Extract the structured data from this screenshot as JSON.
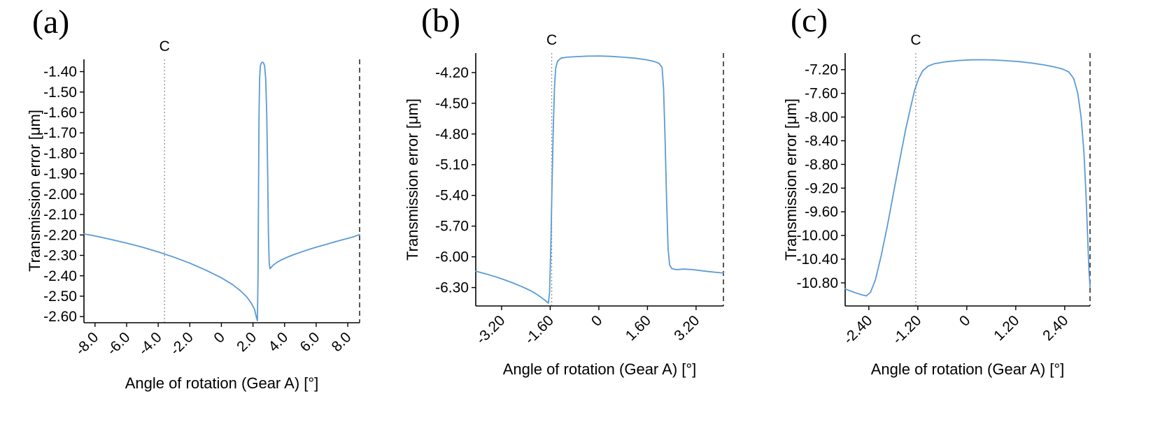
{
  "figure": {
    "background": "#ffffff",
    "curve_color": "#5b9bd5",
    "axis_color": "#000000",
    "cursor_line_color": "#8c8c8c",
    "boundary_line_color": "#2b2b2b"
  },
  "chart_data": [
    {
      "type": "line",
      "panel_label": "(a)",
      "xlabel": "Angle of rotation (Gear A) [°]",
      "ylabel": "Transmission error [μm]",
      "cursor_label": "C",
      "cursor_x": -3.6,
      "xlim": [
        -8.7,
        8.75
      ],
      "ylim": [
        -2.63,
        -1.34
      ],
      "grid": false,
      "legend": "none",
      "x_ticks": [
        {
          "v": -8,
          "label": "-8.0"
        },
        {
          "v": -6,
          "label": "-6.0"
        },
        {
          "v": -4,
          "label": "-4.0"
        },
        {
          "v": -2,
          "label": "-2.0"
        },
        {
          "v": 0,
          "label": "0"
        },
        {
          "v": 2,
          "label": "2.0"
        },
        {
          "v": 4,
          "label": "4.0"
        },
        {
          "v": 6,
          "label": "6.0"
        },
        {
          "v": 8,
          "label": "8.0"
        }
      ],
      "y_ticks": [
        {
          "v": -1.4,
          "label": "-1.40"
        },
        {
          "v": -1.5,
          "label": "-1.50"
        },
        {
          "v": -1.6,
          "label": "-1.60"
        },
        {
          "v": -1.7,
          "label": "-1.70"
        },
        {
          "v": -1.8,
          "label": "-1.80"
        },
        {
          "v": -1.9,
          "label": "-1.90"
        },
        {
          "v": -2.0,
          "label": "-2.00"
        },
        {
          "v": -2.1,
          "label": "-2.10"
        },
        {
          "v": -2.2,
          "label": "-2.20"
        },
        {
          "v": -2.3,
          "label": "-2.30"
        },
        {
          "v": -2.4,
          "label": "-2.40"
        },
        {
          "v": -2.5,
          "label": "-2.50"
        },
        {
          "v": -2.6,
          "label": "-2.60"
        }
      ],
      "series": [
        {
          "name": "transmission-error",
          "points": [
            [
              -8.7,
              -2.195
            ],
            [
              -8,
              -2.205
            ],
            [
              -7,
              -2.222
            ],
            [
              -6,
              -2.24
            ],
            [
              -5,
              -2.26
            ],
            [
              -4,
              -2.283
            ],
            [
              -3,
              -2.309
            ],
            [
              -2,
              -2.338
            ],
            [
              -1,
              -2.372
            ],
            [
              0,
              -2.41
            ],
            [
              0.7,
              -2.443
            ],
            [
              1.2,
              -2.473
            ],
            [
              1.6,
              -2.503
            ],
            [
              1.9,
              -2.535
            ],
            [
              2.1,
              -2.565
            ],
            [
              2.22,
              -2.605
            ],
            [
              2.28,
              -2.62
            ],
            [
              2.32,
              -2.4
            ],
            [
              2.35,
              -2.0
            ],
            [
              2.38,
              -1.62
            ],
            [
              2.42,
              -1.43
            ],
            [
              2.47,
              -1.37
            ],
            [
              2.55,
              -1.355
            ],
            [
              2.65,
              -1.355
            ],
            [
              2.73,
              -1.37
            ],
            [
              2.8,
              -1.43
            ],
            [
              2.87,
              -1.6
            ],
            [
              2.93,
              -1.9
            ],
            [
              2.98,
              -2.2
            ],
            [
              3.03,
              -2.34
            ],
            [
              3.08,
              -2.365
            ],
            [
              3.25,
              -2.35
            ],
            [
              3.5,
              -2.335
            ],
            [
              3.8,
              -2.322
            ],
            [
              4.2,
              -2.308
            ],
            [
              4.6,
              -2.296
            ],
            [
              5,
              -2.285
            ],
            [
              5.5,
              -2.272
            ],
            [
              6,
              -2.26
            ],
            [
              6.5,
              -2.249
            ],
            [
              7,
              -2.238
            ],
            [
              7.5,
              -2.227
            ],
            [
              8,
              -2.217
            ],
            [
              8.4,
              -2.208
            ],
            [
              8.75,
              -2.198
            ]
          ]
        }
      ]
    },
    {
      "type": "line",
      "panel_label": "(b)",
      "xlabel": "Angle of rotation (Gear A) [°]",
      "ylabel": "Transmission error [μm]",
      "cursor_label": "C",
      "cursor_x": -1.55,
      "xlim": [
        -4.05,
        4.1
      ],
      "ylim": [
        -6.48,
        -4.01
      ],
      "grid": false,
      "legend": "none",
      "x_ticks": [
        {
          "v": -3.2,
          "label": "-3.20"
        },
        {
          "v": -1.6,
          "label": "-1.60"
        },
        {
          "v": 0,
          "label": "0"
        },
        {
          "v": 1.6,
          "label": "1.60"
        },
        {
          "v": 3.2,
          "label": "3.20"
        }
      ],
      "y_ticks": [
        {
          "v": -4.2,
          "label": "-4.20"
        },
        {
          "v": -4.5,
          "label": "-4.50"
        },
        {
          "v": -4.8,
          "label": "-4.80"
        },
        {
          "v": -5.1,
          "label": "-5.10"
        },
        {
          "v": -5.4,
          "label": "-5.40"
        },
        {
          "v": -5.7,
          "label": "-5.70"
        },
        {
          "v": -6.0,
          "label": "-6.00"
        },
        {
          "v": -6.3,
          "label": "-6.30"
        }
      ],
      "series": [
        {
          "name": "transmission-error",
          "points": [
            [
              -4.05,
              -6.14
            ],
            [
              -3.7,
              -6.168
            ],
            [
              -3.4,
              -6.195
            ],
            [
              -3.1,
              -6.225
            ],
            [
              -2.8,
              -6.258
            ],
            [
              -2.5,
              -6.295
            ],
            [
              -2.25,
              -6.33
            ],
            [
              -2.05,
              -6.365
            ],
            [
              -1.88,
              -6.4
            ],
            [
              -1.74,
              -6.432
            ],
            [
              -1.66,
              -6.452
            ],
            [
              -1.62,
              -6.35
            ],
            [
              -1.58,
              -5.9
            ],
            [
              -1.54,
              -5.3
            ],
            [
              -1.5,
              -4.75
            ],
            [
              -1.46,
              -4.35
            ],
            [
              -1.42,
              -4.16
            ],
            [
              -1.36,
              -4.09
            ],
            [
              -1.25,
              -4.06
            ],
            [
              -1.05,
              -4.05
            ],
            [
              -0.75,
              -4.045
            ],
            [
              -0.4,
              -4.04
            ],
            [
              0,
              -4.038
            ],
            [
              0.4,
              -4.042
            ],
            [
              0.8,
              -4.05
            ],
            [
              1.2,
              -4.06
            ],
            [
              1.55,
              -4.075
            ],
            [
              1.8,
              -4.09
            ],
            [
              1.98,
              -4.11
            ],
            [
              2.08,
              -4.15
            ],
            [
              2.13,
              -4.35
            ],
            [
              2.18,
              -4.85
            ],
            [
              2.23,
              -5.45
            ],
            [
              2.28,
              -5.92
            ],
            [
              2.33,
              -6.08
            ],
            [
              2.4,
              -6.115
            ],
            [
              2.55,
              -6.125
            ],
            [
              2.8,
              -6.12
            ],
            [
              3.1,
              -6.125
            ],
            [
              3.5,
              -6.14
            ],
            [
              3.8,
              -6.15
            ],
            [
              4.1,
              -6.158
            ]
          ]
        }
      ]
    },
    {
      "type": "line",
      "panel_label": "(c)",
      "xlabel": "Angle of rotation (Gear A) [°]",
      "ylabel": "Transmission error [μm]",
      "cursor_label": "C",
      "cursor_x": -1.25,
      "xlim": [
        -2.98,
        3.02
      ],
      "ylim": [
        -11.19,
        -6.92
      ],
      "grid": false,
      "legend": "none",
      "x_ticks": [
        {
          "v": -2.4,
          "label": "-2.40"
        },
        {
          "v": -1.2,
          "label": "-1.20"
        },
        {
          "v": 0,
          "label": "0"
        },
        {
          "v": 1.2,
          "label": "1.20"
        },
        {
          "v": 2.4,
          "label": "2.40"
        }
      ],
      "y_ticks": [
        {
          "v": -7.2,
          "label": "-7.20"
        },
        {
          "v": -7.6,
          "label": "-7.60"
        },
        {
          "v": -8.0,
          "label": "-8.00"
        },
        {
          "v": -8.4,
          "label": "-8.40"
        },
        {
          "v": -8.8,
          "label": "-8.80"
        },
        {
          "v": -9.2,
          "label": "-9.20"
        },
        {
          "v": -9.6,
          "label": "-9.60"
        },
        {
          "v": -10.0,
          "label": "-10.00"
        },
        {
          "v": -10.4,
          "label": "-10.40"
        },
        {
          "v": -10.8,
          "label": "-10.80"
        }
      ],
      "series": [
        {
          "name": "transmission-error",
          "points": [
            [
              -2.98,
              -10.9
            ],
            [
              -2.86,
              -10.935
            ],
            [
              -2.72,
              -10.97
            ],
            [
              -2.58,
              -11.0
            ],
            [
              -2.46,
              -11.02
            ],
            [
              -2.36,
              -10.96
            ],
            [
              -2.24,
              -10.75
            ],
            [
              -2.1,
              -10.35
            ],
            [
              -1.95,
              -9.85
            ],
            [
              -1.8,
              -9.3
            ],
            [
              -1.65,
              -8.75
            ],
            [
              -1.5,
              -8.22
            ],
            [
              -1.38,
              -7.85
            ],
            [
              -1.28,
              -7.55
            ],
            [
              -1.18,
              -7.35
            ],
            [
              -1.08,
              -7.22
            ],
            [
              -0.95,
              -7.14
            ],
            [
              -0.8,
              -7.1
            ],
            [
              -0.5,
              -7.065
            ],
            [
              -0.2,
              -7.045
            ],
            [
              0.1,
              -7.035
            ],
            [
              0.4,
              -7.032
            ],
            [
              0.7,
              -7.038
            ],
            [
              1.0,
              -7.05
            ],
            [
              1.3,
              -7.065
            ],
            [
              1.6,
              -7.09
            ],
            [
              1.9,
              -7.12
            ],
            [
              2.15,
              -7.155
            ],
            [
              2.35,
              -7.19
            ],
            [
              2.5,
              -7.24
            ],
            [
              2.62,
              -7.35
            ],
            [
              2.72,
              -7.6
            ],
            [
              2.8,
              -8.0
            ],
            [
              2.87,
              -8.6
            ],
            [
              2.92,
              -9.3
            ],
            [
              2.96,
              -10.0
            ],
            [
              2.99,
              -10.55
            ],
            [
              3.02,
              -10.87
            ]
          ]
        }
      ]
    }
  ]
}
